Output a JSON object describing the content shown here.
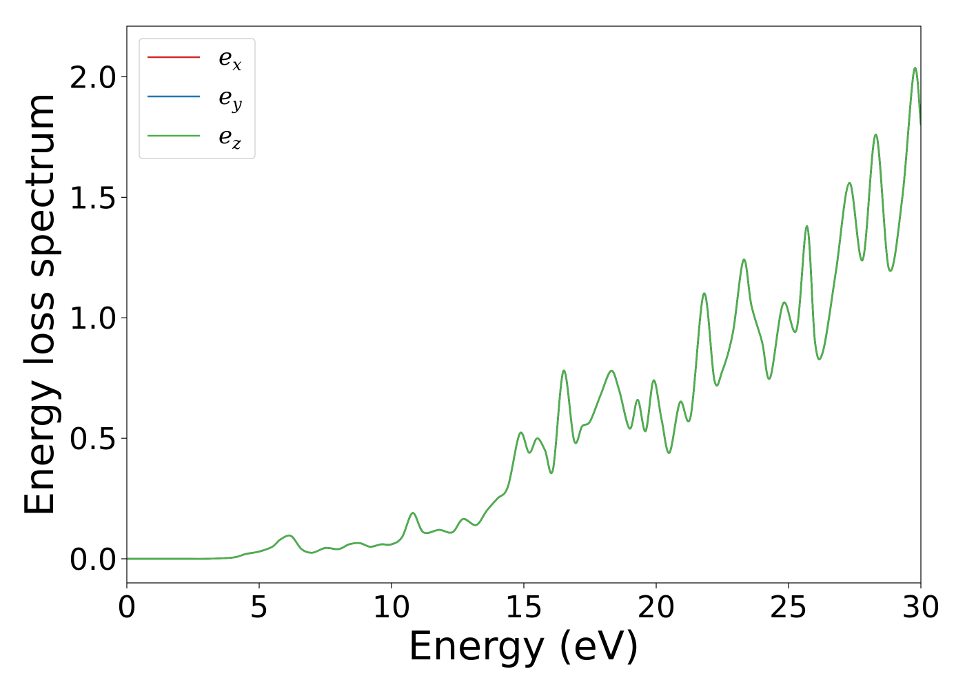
{
  "chart_data": {
    "type": "line",
    "title": "",
    "xlabel": "Energy (eV)",
    "ylabel": "Energy loss spectrum",
    "xlim": [
      0,
      30
    ],
    "ylim": [
      -0.1,
      2.21
    ],
    "xticks": [
      0,
      5,
      10,
      15,
      20,
      25,
      30
    ],
    "xtick_labels": [
      "0",
      "5",
      "10",
      "15",
      "20",
      "25",
      "30"
    ],
    "yticks": [
      0.0,
      0.5,
      1.0,
      1.5,
      2.0
    ],
    "ytick_labels": [
      "0.0",
      "0.5",
      "1.0",
      "1.5",
      "2.0"
    ],
    "grid": false,
    "legend_position": "top-left",
    "x": [
      0,
      1,
      2,
      3,
      4,
      4.5,
      5,
      5.5,
      5.8,
      6.2,
      6.6,
      7.0,
      7.5,
      8.0,
      8.4,
      8.8,
      9.2,
      9.6,
      10.0,
      10.4,
      10.8,
      11.2,
      11.8,
      12.3,
      12.7,
      13.2,
      13.6,
      14.0,
      14.4,
      14.85,
      15.2,
      15.5,
      15.8,
      16.1,
      16.5,
      16.9,
      17.2,
      17.5,
      17.9,
      18.3,
      18.6,
      19.0,
      19.3,
      19.6,
      19.9,
      20.2,
      20.5,
      20.9,
      21.3,
      21.8,
      22.2,
      22.5,
      22.9,
      23.3,
      23.6,
      24.0,
      24.3,
      24.8,
      25.3,
      25.7,
      26.0,
      26.3,
      26.8,
      27.3,
      27.8,
      28.3,
      28.8,
      29.3,
      29.75,
      30.0
    ],
    "series": [
      {
        "name": "e_x",
        "label_base": "e",
        "label_sub": "x",
        "color": "#d62728",
        "y": [
          0.0,
          0.0,
          0.0,
          0.0,
          0.005,
          0.02,
          0.03,
          0.05,
          0.08,
          0.095,
          0.04,
          0.025,
          0.045,
          0.04,
          0.06,
          0.065,
          0.05,
          0.06,
          0.06,
          0.09,
          0.19,
          0.11,
          0.12,
          0.11,
          0.165,
          0.14,
          0.2,
          0.25,
          0.3,
          0.52,
          0.44,
          0.5,
          0.45,
          0.37,
          0.78,
          0.49,
          0.55,
          0.57,
          0.68,
          0.78,
          0.7,
          0.54,
          0.66,
          0.53,
          0.74,
          0.58,
          0.44,
          0.65,
          0.59,
          1.1,
          0.74,
          0.78,
          0.94,
          1.24,
          1.05,
          0.9,
          0.75,
          1.06,
          0.95,
          1.38,
          0.9,
          0.86,
          1.2,
          1.56,
          1.24,
          1.76,
          1.2,
          1.5,
          2.03,
          1.8
        ]
      },
      {
        "name": "e_y",
        "label_base": "e",
        "label_sub": "y",
        "color": "#1f77b4",
        "y": [
          0.0,
          0.0,
          0.0,
          0.0,
          0.005,
          0.02,
          0.03,
          0.05,
          0.08,
          0.095,
          0.04,
          0.025,
          0.045,
          0.04,
          0.06,
          0.065,
          0.05,
          0.06,
          0.06,
          0.09,
          0.19,
          0.11,
          0.12,
          0.11,
          0.165,
          0.14,
          0.2,
          0.25,
          0.3,
          0.52,
          0.44,
          0.5,
          0.45,
          0.37,
          0.78,
          0.49,
          0.55,
          0.57,
          0.68,
          0.78,
          0.7,
          0.54,
          0.66,
          0.53,
          0.74,
          0.58,
          0.44,
          0.65,
          0.59,
          1.1,
          0.74,
          0.78,
          0.94,
          1.24,
          1.05,
          0.9,
          0.75,
          1.06,
          0.95,
          1.38,
          0.9,
          0.86,
          1.2,
          1.56,
          1.24,
          1.76,
          1.2,
          1.5,
          2.03,
          1.8
        ]
      },
      {
        "name": "e_z",
        "label_base": "e",
        "label_sub": "z",
        "color": "#4daf4a",
        "y": [
          0.0,
          0.0,
          0.0,
          0.0,
          0.005,
          0.02,
          0.03,
          0.05,
          0.08,
          0.095,
          0.04,
          0.025,
          0.045,
          0.04,
          0.06,
          0.065,
          0.05,
          0.06,
          0.06,
          0.09,
          0.19,
          0.11,
          0.12,
          0.11,
          0.165,
          0.14,
          0.2,
          0.25,
          0.3,
          0.52,
          0.44,
          0.5,
          0.45,
          0.37,
          0.78,
          0.49,
          0.55,
          0.57,
          0.68,
          0.78,
          0.7,
          0.54,
          0.66,
          0.53,
          0.74,
          0.58,
          0.44,
          0.65,
          0.59,
          1.1,
          0.74,
          0.78,
          0.94,
          1.24,
          1.05,
          0.9,
          0.75,
          1.06,
          0.95,
          1.38,
          0.9,
          0.86,
          1.2,
          1.56,
          1.24,
          1.76,
          1.2,
          1.5,
          2.03,
          1.8
        ]
      }
    ]
  }
}
